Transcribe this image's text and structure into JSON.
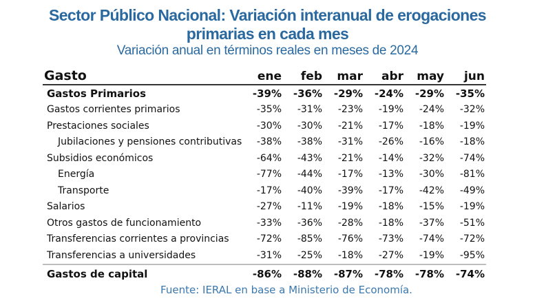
{
  "title_line1": "Sector Público Nacional: Variación interanual de erogaciones",
  "title_line2": "primarias en cada mes",
  "subtitle": "Variación anual en términos reales en meses de 2024",
  "table": {
    "header": "Gasto",
    "months": [
      "ene",
      "feb",
      "mar",
      "abr",
      "may",
      "jun"
    ],
    "rows": [
      {
        "label": "Gastos Primarios",
        "values": [
          "-39%",
          "-36%",
          "-29%",
          "-24%",
          "-29%",
          "-35%"
        ]
      },
      {
        "label": "Gastos corrientes primarios",
        "values": [
          "-35%",
          "-31%",
          "-23%",
          "-19%",
          "-24%",
          "-32%"
        ]
      },
      {
        "label": "Prestaciones sociales",
        "values": [
          "-30%",
          "-30%",
          "-21%",
          "-17%",
          "-18%",
          "-19%"
        ]
      },
      {
        "label": "Jubilaciones y pensiones contributivas",
        "values": [
          "-38%",
          "-38%",
          "-31%",
          "-26%",
          "-16%",
          "-18%"
        ]
      },
      {
        "label": "Subsidios económicos",
        "values": [
          "-64%",
          "-43%",
          "-21%",
          "-14%",
          "-32%",
          "-74%"
        ]
      },
      {
        "label": "Energía",
        "values": [
          "-77%",
          "-44%",
          "-17%",
          "-13%",
          "-30%",
          "-81%"
        ]
      },
      {
        "label": "Transporte",
        "values": [
          "-17%",
          "-40%",
          "-39%",
          "-17%",
          "-42%",
          "-49%"
        ]
      },
      {
        "label": "Salarios",
        "values": [
          "-27%",
          "-11%",
          "-19%",
          "-18%",
          "-15%",
          "-19%"
        ]
      },
      {
        "label": "Otros gastos de funcionamiento",
        "values": [
          "-33%",
          "-36%",
          "-28%",
          "-18%",
          "-37%",
          "-51%"
        ]
      },
      {
        "label": "Transferencias corrientes a provincias",
        "values": [
          "-72%",
          "-85%",
          "-76%",
          "-73%",
          "-74%",
          "-72%"
        ]
      },
      {
        "label": "Transferencias a universidades",
        "values": [
          "-31%",
          "-25%",
          "-18%",
          "-27%",
          "-19%",
          "-95%"
        ]
      },
      {
        "label": "Gastos de capital",
        "values": [
          "-86%",
          "-88%",
          "-87%",
          "-78%",
          "-78%",
          "-74%"
        ]
      }
    ]
  },
  "source": "Fuente: IERAL en base a Ministerio de Economía."
}
